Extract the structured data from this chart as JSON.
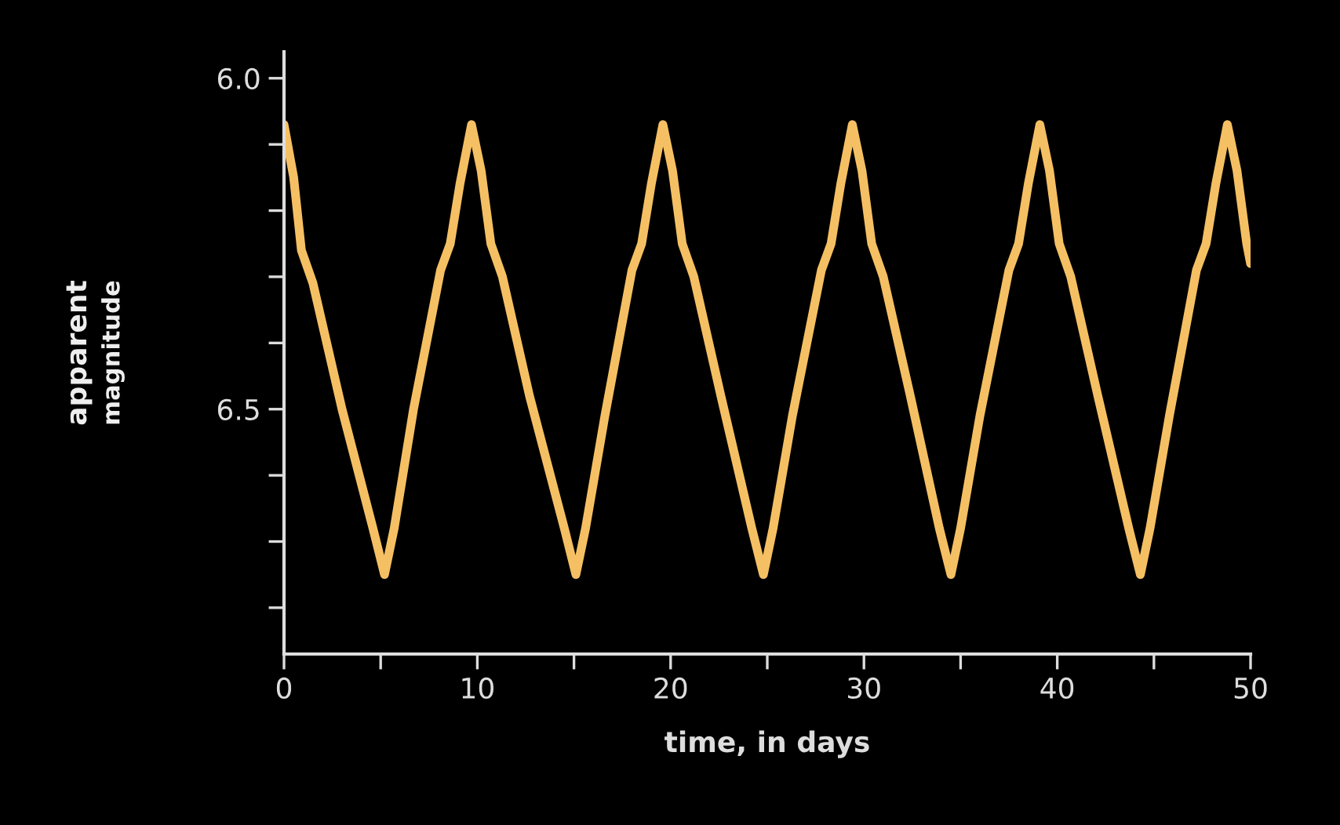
{
  "chart_data": {
    "type": "line",
    "xlabel": "time, in days",
    "ylabel": "apparent\nmagnitude",
    "xlim": [
      0,
      50
    ],
    "ylim": [
      6.87,
      5.96
    ],
    "xticks": [
      0,
      {
        "value": 5,
        "label": null
      },
      10,
      {
        "value": 15,
        "label": null
      },
      20,
      {
        "value": 25,
        "label": null
      },
      30,
      {
        "value": 35,
        "label": null
      },
      40,
      {
        "value": 45,
        "label": null
      },
      50
    ],
    "yticks": [
      {
        "value": 6.0,
        "label": "6.0"
      },
      {
        "value": 6.1,
        "label": null
      },
      {
        "value": 6.2,
        "label": null
      },
      {
        "value": 6.3,
        "label": null
      },
      {
        "value": 6.4,
        "label": null
      },
      6.5,
      {
        "value": 6.6,
        "label": null
      },
      {
        "value": 6.7,
        "label": null
      },
      {
        "value": 6.8,
        "label": null
      }
    ],
    "grid": false,
    "legend": false,
    "marker": "none",
    "line_style": "solid",
    "series": [
      {
        "color": "#f5c063",
        "x": [
          0,
          0.5,
          0.9,
          1.5,
          3.0,
          4.6,
          5.2,
          5.7,
          6.7,
          8.1,
          8.6,
          9.1,
          9.7,
          10.2,
          10.7,
          11.3,
          12.7,
          14.5,
          15.1,
          15.6,
          16.6,
          18.0,
          18.5,
          19.0,
          19.6,
          20.1,
          20.6,
          21.2,
          22.6,
          24.2,
          24.8,
          25.3,
          26.3,
          27.8,
          28.3,
          28.8,
          29.4,
          29.9,
          30.4,
          31.0,
          32.4,
          33.9,
          34.5,
          35.0,
          36.0,
          37.5,
          38.0,
          38.5,
          39.1,
          39.6,
          40.1,
          40.7,
          42.1,
          43.7,
          44.3,
          44.8,
          45.8,
          47.2,
          47.7,
          48.2,
          48.8,
          49.3,
          49.8,
          50.0
        ],
        "values": [
          6.07,
          6.15,
          6.26,
          6.31,
          6.5,
          6.68,
          6.75,
          6.68,
          6.5,
          6.29,
          6.25,
          6.16,
          6.07,
          6.14,
          6.25,
          6.3,
          6.48,
          6.68,
          6.75,
          6.68,
          6.51,
          6.29,
          6.25,
          6.16,
          6.07,
          6.14,
          6.25,
          6.3,
          6.48,
          6.68,
          6.75,
          6.68,
          6.51,
          6.29,
          6.25,
          6.16,
          6.07,
          6.14,
          6.25,
          6.3,
          6.48,
          6.68,
          6.75,
          6.68,
          6.51,
          6.29,
          6.25,
          6.16,
          6.07,
          6.14,
          6.25,
          6.3,
          6.48,
          6.68,
          6.75,
          6.68,
          6.51,
          6.29,
          6.25,
          6.16,
          6.07,
          6.14,
          6.25,
          6.28
        ]
      }
    ]
  }
}
